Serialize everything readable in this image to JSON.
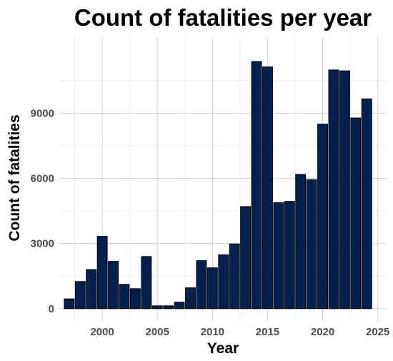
{
  "chart_data": {
    "type": "bar",
    "title": "Count of fatalities per year",
    "xlabel": "Year",
    "ylabel": "Count of fatalities",
    "x": [
      1997,
      1998,
      1999,
      2000,
      2001,
      2002,
      2003,
      2004,
      2005,
      2006,
      2007,
      2008,
      2009,
      2010,
      2011,
      2012,
      2013,
      2014,
      2015,
      2016,
      2017,
      2018,
      2019,
      2020,
      2021,
      2022,
      2023,
      2024
    ],
    "values": [
      450,
      1250,
      1800,
      3330,
      2180,
      1120,
      920,
      2400,
      130,
      130,
      300,
      960,
      2210,
      1880,
      2480,
      2980,
      4700,
      11380,
      11130,
      4880,
      4940,
      6180,
      5940,
      8500,
      10990,
      10950,
      8780,
      9660
    ],
    "xlim": [
      1996.1,
      2025.8
    ],
    "ylim": [
      -600,
      12500
    ],
    "x_ticks": [
      2000,
      2005,
      2010,
      2015,
      2020,
      2025
    ],
    "x_tick_labels": [
      "2000",
      "2005",
      "2010",
      "2015",
      "2020",
      "2025"
    ],
    "y_ticks": [
      0,
      3000,
      6000,
      9000
    ],
    "y_tick_labels": [
      "0",
      "3000",
      "6000",
      "9000"
    ],
    "bar_color": "#03204f",
    "grid": true,
    "legend": "none"
  }
}
